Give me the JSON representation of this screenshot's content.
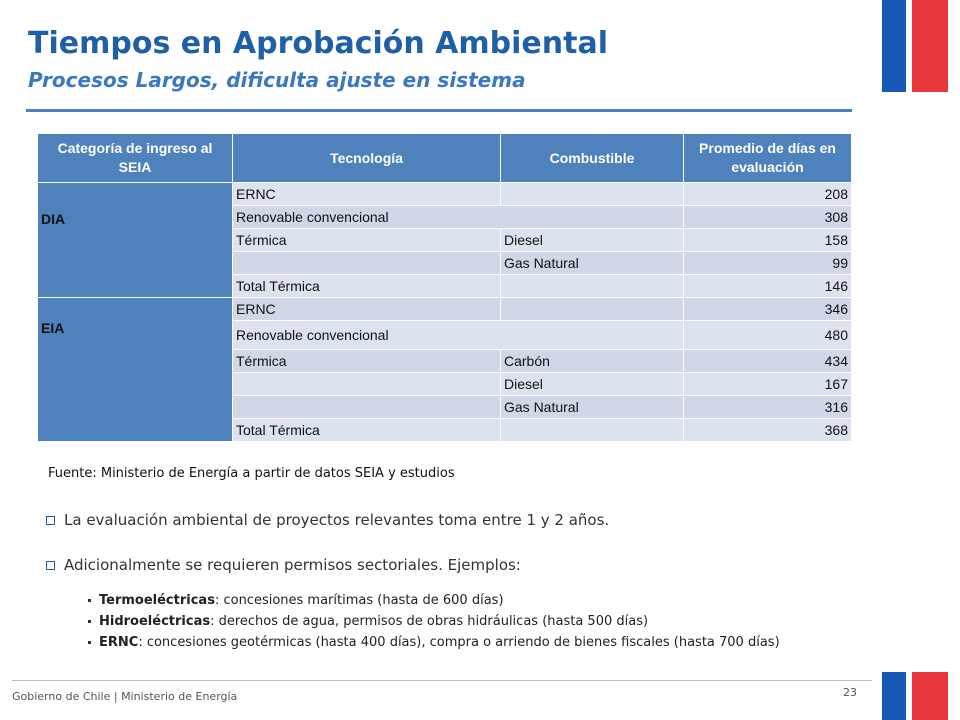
{
  "header": {
    "title": "Tiempos en Aprobación Ambiental",
    "subtitle": "Procesos Largos, dificulta ajuste en sistema"
  },
  "colors": {
    "accent": "#1f5fa8",
    "table_header": "#4f81bd",
    "flag_blue": "#1759b5",
    "flag_red": "#e8383d"
  },
  "table": {
    "headers": [
      "Categoría de ingreso al SEIA",
      "Tecnología",
      "Combustible",
      "Promedio  de días en evaluación"
    ],
    "groups": [
      {
        "category": "DIA",
        "rows": [
          {
            "tecnologia": "ERNC",
            "combustible": "",
            "dias": "208"
          },
          {
            "tecnologia": "Renovable convencional",
            "combustible": "",
            "dias": "308"
          },
          {
            "tecnologia": "Térmica",
            "combustible": "Diesel",
            "dias": "158"
          },
          {
            "tecnologia": "",
            "combustible": "Gas Natural",
            "dias": "99"
          },
          {
            "tecnologia": "Total Térmica",
            "combustible": "",
            "dias": "146"
          }
        ]
      },
      {
        "category": "EIA",
        "rows": [
          {
            "tecnologia": " ERNC",
            "combustible": "",
            "dias": "346"
          },
          {
            "tecnologia": "Renovable convencional",
            "combustible": "",
            "dias": "480"
          },
          {
            "tecnologia": "Térmica",
            "combustible": "Carbón",
            "dias": "434"
          },
          {
            "tecnologia": "",
            "combustible": "Diesel",
            "dias": "167"
          },
          {
            "tecnologia": "",
            "combustible": "Gas Natural",
            "dias": "316"
          },
          {
            "tecnologia": "Total Térmica",
            "combustible": "",
            "dias": "368"
          }
        ]
      }
    ]
  },
  "source": "Fuente: Ministerio de Energía  a partir de datos SEIA y estudios",
  "bullets": [
    "La evaluación ambiental de proyectos relevantes toma entre 1 y 2 años.",
    "Adicionalmente se requieren permisos sectoriales. Ejemplos:"
  ],
  "examples": [
    {
      "label": "Termoeléctricas",
      "text": ": concesiones marítimas (hasta de 600 días)"
    },
    {
      "label": "Hidroeléctricas",
      "text": ": derechos de agua, permisos de obras hidráulicas (hasta 500 días)"
    },
    {
      "label": "ERNC",
      "text": ": concesiones geotérmicas (hasta 400 días), compra o arriendo de bienes fiscales (hasta 700 días)"
    }
  ],
  "footer": {
    "org": "Gobierno de Chile | Ministerio de Energía",
    "page": "23"
  }
}
